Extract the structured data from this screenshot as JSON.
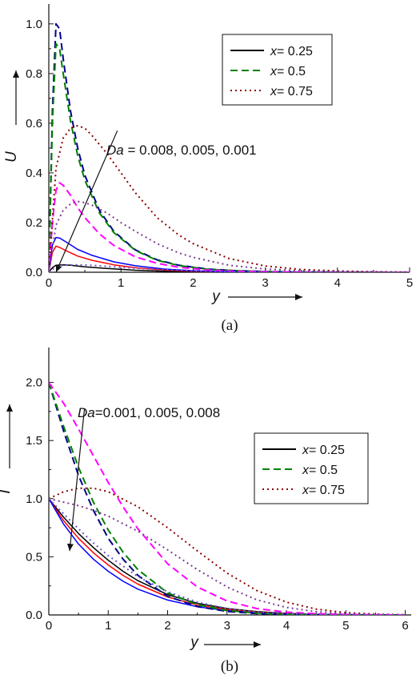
{
  "chart_data": [
    {
      "type": "line",
      "caption": "(a)",
      "xlabel": "y",
      "ylabel": "U",
      "xlim": [
        0,
        5
      ],
      "ylim": [
        0,
        1.08
      ],
      "xticks": [
        0,
        1,
        2,
        3,
        4,
        5
      ],
      "yticks": [
        0.0,
        0.2,
        0.4,
        0.6,
        0.8,
        1.0
      ],
      "xtick_labels": [
        "0",
        "1",
        "2",
        "3",
        "4",
        "5"
      ],
      "ytick_labels": [
        "0.0",
        "0.2",
        "0.4",
        "0.6",
        "0.8",
        "1.0"
      ],
      "legend": {
        "position": "top-right",
        "entries": [
          {
            "prefix": "x",
            "label": "= 0.25",
            "style": "solid",
            "color": "#000000"
          },
          {
            "prefix": "x",
            "label": "= 0.5",
            "style": "dashed",
            "color": "#008000"
          },
          {
            "prefix": "x",
            "label": "= 0.75",
            "style": "dotted",
            "color": "#8b0000"
          }
        ]
      },
      "annotation": {
        "italic": "Da",
        "text": " = 0.008, 0.005, 0.001",
        "from": [
          0.95,
          0.57
        ],
        "to": [
          0.1,
          0.0
        ]
      },
      "series": [
        {
          "style": "solid",
          "color": "#000000",
          "x": [
            0,
            0.05,
            0.1,
            0.2,
            0.3,
            0.5,
            0.8,
            1.2,
            1.6,
            2.0,
            2.5,
            3.0,
            5.0
          ],
          "values": [
            0,
            0.018,
            0.028,
            0.03,
            0.028,
            0.022,
            0.015,
            0.008,
            0.004,
            0.002,
            0.001,
            0.0003,
            0
          ]
        },
        {
          "style": "solid",
          "color": "#ff0000",
          "x": [
            0,
            0.05,
            0.1,
            0.15,
            0.25,
            0.4,
            0.6,
            0.9,
            1.2,
            1.6,
            2.0,
            2.5,
            3.0,
            5.0
          ],
          "values": [
            0,
            0.08,
            0.105,
            0.1,
            0.085,
            0.065,
            0.048,
            0.03,
            0.018,
            0.009,
            0.004,
            0.0015,
            0.0005,
            0
          ]
        },
        {
          "style": "solid",
          "color": "#0000ff",
          "x": [
            0,
            0.05,
            0.1,
            0.15,
            0.25,
            0.4,
            0.6,
            0.9,
            1.2,
            1.6,
            2.0,
            2.5,
            3.0,
            5.0
          ],
          "values": [
            0,
            0.11,
            0.14,
            0.138,
            0.12,
            0.092,
            0.068,
            0.042,
            0.026,
            0.013,
            0.006,
            0.002,
            0.0008,
            0
          ]
        },
        {
          "style": "dashed",
          "color": "#00008b",
          "x": [
            0,
            0.05,
            0.1,
            0.15,
            0.2,
            0.3,
            0.4,
            0.5,
            0.7,
            0.9,
            1.2,
            1.5,
            1.8,
            2.2,
            2.6,
            3.0,
            3.5,
            5.0
          ],
          "values": [
            0,
            0.65,
            1.0,
            0.98,
            0.86,
            0.65,
            0.5,
            0.39,
            0.25,
            0.165,
            0.09,
            0.05,
            0.028,
            0.013,
            0.006,
            0.003,
            0.001,
            0
          ]
        },
        {
          "style": "dashed",
          "color": "#008000",
          "x": [
            0,
            0.05,
            0.1,
            0.15,
            0.2,
            0.3,
            0.4,
            0.5,
            0.7,
            0.9,
            1.2,
            1.5,
            1.8,
            2.2,
            2.6,
            3.0,
            3.5,
            5.0
          ],
          "values": [
            0,
            0.6,
            0.92,
            0.9,
            0.8,
            0.61,
            0.47,
            0.37,
            0.24,
            0.16,
            0.088,
            0.048,
            0.027,
            0.012,
            0.006,
            0.003,
            0.001,
            0
          ]
        },
        {
          "style": "dashed",
          "color": "#ff00ff",
          "x": [
            0,
            0.05,
            0.1,
            0.15,
            0.2,
            0.3,
            0.4,
            0.5,
            0.7,
            0.9,
            1.2,
            1.5,
            1.8,
            2.2,
            2.6,
            3.0,
            3.5,
            5.0
          ],
          "values": [
            0,
            0.2,
            0.33,
            0.36,
            0.35,
            0.31,
            0.26,
            0.22,
            0.155,
            0.108,
            0.062,
            0.036,
            0.02,
            0.009,
            0.004,
            0.002,
            0.0008,
            0
          ]
        },
        {
          "style": "dotted",
          "color": "#8b0000",
          "x": [
            0,
            0.1,
            0.2,
            0.3,
            0.4,
            0.5,
            0.6,
            0.8,
            1.0,
            1.2,
            1.5,
            1.8,
            2.0,
            2.5,
            3.0,
            3.5,
            4.0,
            4.5,
            5.0
          ],
          "values": [
            0,
            0.42,
            0.54,
            0.58,
            0.59,
            0.58,
            0.55,
            0.48,
            0.4,
            0.32,
            0.22,
            0.15,
            0.115,
            0.055,
            0.025,
            0.011,
            0.005,
            0.002,
            0.0005
          ]
        },
        {
          "style": "dotted",
          "color": "#7b3b8f",
          "x": [
            0,
            0.1,
            0.2,
            0.3,
            0.4,
            0.5,
            0.6,
            0.8,
            1.0,
            1.2,
            1.5,
            1.8,
            2.0,
            2.5,
            3.0,
            3.5,
            4.0,
            5.0
          ],
          "values": [
            0,
            0.19,
            0.25,
            0.275,
            0.285,
            0.28,
            0.27,
            0.24,
            0.2,
            0.165,
            0.115,
            0.078,
            0.06,
            0.028,
            0.013,
            0.006,
            0.002,
            0
          ]
        },
        {
          "style": "dotted",
          "color": "#6a5acd",
          "x": [
            0,
            0.1,
            0.2,
            0.4,
            0.6,
            0.8,
            1.0,
            1.4,
            1.8,
            2.2,
            2.6,
            3.0,
            5.0
          ],
          "values": [
            0,
            0.022,
            0.028,
            0.03,
            0.028,
            0.024,
            0.02,
            0.013,
            0.008,
            0.004,
            0.002,
            0.001,
            0
          ]
        }
      ]
    },
    {
      "type": "line",
      "caption": "(b)",
      "xlabel": "y",
      "ylabel": "T",
      "xlim": [
        0,
        6.1
      ],
      "ylim": [
        0,
        2.3
      ],
      "xticks": [
        0,
        1,
        2,
        3,
        4,
        5,
        6
      ],
      "yticks": [
        0.0,
        0.5,
        1.0,
        1.5,
        2.0
      ],
      "xtick_labels": [
        "0",
        "1",
        "2",
        "3",
        "4",
        "5",
        "6"
      ],
      "ytick_labels": [
        "0.0",
        "0.5",
        "1.0",
        "1.5",
        "2.0"
      ],
      "legend": {
        "position": "right",
        "entries": [
          {
            "prefix": "x",
            "label": "= 0.25",
            "style": "solid",
            "color": "#000000"
          },
          {
            "prefix": "x",
            "label": "= 0.5",
            "style": "dashed",
            "color": "#008000"
          },
          {
            "prefix": "x",
            "label": "= 0.75",
            "style": "dotted",
            "color": "#8b0000"
          }
        ]
      },
      "annotation": {
        "italic": "Da",
        "text": "=0.001, 0.005, 0.008",
        "from": [
          0.6,
          1.77
        ],
        "to": [
          0.35,
          0.55
        ]
      },
      "series": [
        {
          "style": "solid",
          "color": "#000000",
          "x": [
            0,
            0.25,
            0.5,
            0.75,
            1.0,
            1.25,
            1.5,
            2.0,
            2.5,
            3.0,
            3.5,
            4.0,
            4.5,
            5.0,
            6.0
          ],
          "values": [
            1.0,
            0.84,
            0.7,
            0.58,
            0.47,
            0.375,
            0.295,
            0.175,
            0.1,
            0.055,
            0.029,
            0.014,
            0.006,
            0.0025,
            0
          ]
        },
        {
          "style": "solid",
          "color": "#ff0000",
          "x": [
            0,
            0.25,
            0.5,
            0.75,
            1.0,
            1.25,
            1.5,
            2.0,
            2.5,
            3.0,
            3.5,
            4.0,
            4.5,
            5.0,
            6.0
          ],
          "values": [
            1.0,
            0.81,
            0.66,
            0.535,
            0.43,
            0.34,
            0.265,
            0.155,
            0.085,
            0.046,
            0.024,
            0.011,
            0.005,
            0.002,
            0
          ]
        },
        {
          "style": "solid",
          "color": "#0000ff",
          "x": [
            0,
            0.25,
            0.5,
            0.75,
            1.0,
            1.25,
            1.5,
            2.0,
            2.5,
            3.0,
            3.5,
            4.0,
            4.5,
            5.0,
            6.0
          ],
          "values": [
            1.0,
            0.78,
            0.61,
            0.48,
            0.375,
            0.29,
            0.222,
            0.128,
            0.07,
            0.037,
            0.019,
            0.009,
            0.004,
            0.0015,
            0
          ]
        },
        {
          "style": "dashed",
          "color": "#00008b",
          "x": [
            0,
            0.25,
            0.5,
            0.75,
            1.0,
            1.25,
            1.5,
            2.0,
            2.5,
            3.0,
            3.5,
            4.0,
            4.5,
            5.0,
            6.0
          ],
          "values": [
            2.0,
            1.58,
            1.2,
            0.9,
            0.66,
            0.48,
            0.34,
            0.16,
            0.072,
            0.03,
            0.012,
            0.005,
            0.002,
            0.0008,
            0
          ]
        },
        {
          "style": "dashed",
          "color": "#008000",
          "x": [
            0,
            0.25,
            0.5,
            0.75,
            1.0,
            1.25,
            1.5,
            2.0,
            2.5,
            3.0,
            3.5,
            4.0,
            4.5,
            5.0,
            6.0
          ],
          "values": [
            2.0,
            1.62,
            1.27,
            0.97,
            0.73,
            0.54,
            0.39,
            0.19,
            0.088,
            0.038,
            0.016,
            0.006,
            0.0025,
            0.001,
            0
          ]
        },
        {
          "style": "dashed",
          "color": "#ff00ff",
          "x": [
            0,
            0.25,
            0.5,
            0.75,
            1.0,
            1.25,
            1.5,
            2.0,
            2.5,
            3.0,
            3.5,
            4.0,
            4.5,
            5.0,
            6.0
          ],
          "values": [
            2.0,
            1.82,
            1.6,
            1.37,
            1.14,
            0.93,
            0.74,
            0.44,
            0.24,
            0.12,
            0.055,
            0.024,
            0.01,
            0.004,
            0
          ]
        },
        {
          "style": "dotted",
          "color": "#8b0000",
          "x": [
            0,
            0.25,
            0.5,
            0.75,
            1.0,
            1.5,
            2.0,
            2.5,
            3.0,
            3.5,
            4.0,
            4.5,
            5.0,
            5.5,
            6.0
          ],
          "values": [
            1.0,
            1.06,
            1.09,
            1.09,
            1.06,
            0.93,
            0.75,
            0.55,
            0.36,
            0.21,
            0.11,
            0.05,
            0.02,
            0.007,
            0.002
          ]
        },
        {
          "style": "dotted",
          "color": "#7b3b8f",
          "x": [
            0,
            0.25,
            0.5,
            0.75,
            1.0,
            1.5,
            2.0,
            2.5,
            3.0,
            3.5,
            4.0,
            4.5,
            5.0,
            5.5,
            6.0
          ],
          "values": [
            1.0,
            0.97,
            0.94,
            0.9,
            0.85,
            0.72,
            0.56,
            0.39,
            0.24,
            0.13,
            0.065,
            0.028,
            0.011,
            0.004,
            0.001
          ]
        },
        {
          "style": "dotted",
          "color": "#6a5acd",
          "x": [
            0,
            0.25,
            0.5,
            0.75,
            1.0,
            1.5,
            2.0,
            2.5,
            3.0,
            3.5,
            4.0,
            4.5,
            5.0,
            6.0
          ],
          "values": [
            1.0,
            0.87,
            0.74,
            0.62,
            0.51,
            0.33,
            0.2,
            0.11,
            0.055,
            0.025,
            0.01,
            0.004,
            0.0015,
            0
          ]
        }
      ]
    }
  ]
}
